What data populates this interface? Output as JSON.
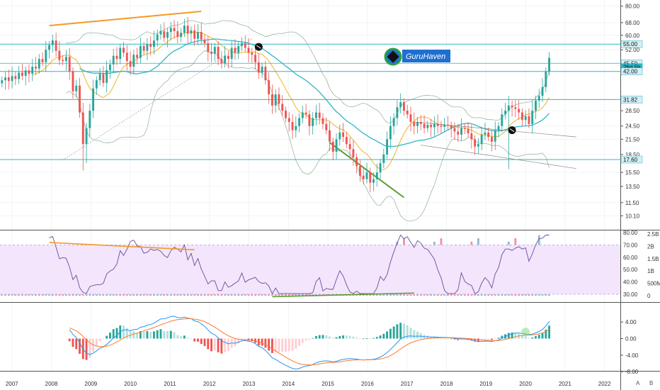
{
  "brand": {
    "logo_text": "GuruHaven",
    "accent": "#1e6fd0",
    "logo_ring": "#2ea043"
  },
  "colors": {
    "up": "#26a69a",
    "down": "#ef5350",
    "up_vol": "#8fbccf",
    "down_vol": "#f48fa6",
    "ma_fast": "#f0b429",
    "ma_slow": "#33b5c8",
    "bb": "#9db7a3",
    "hline": "#2bb7c8",
    "trend_orange": "#f59a23",
    "trend_green": "#5a9e2e",
    "macd": "#2196f3",
    "signal": "#ff7a30",
    "rsi": "#6b4c9a",
    "rsi_band": "#f3e5fb"
  },
  "chart_data": [
    {
      "type": "candlestick",
      "panel": "price",
      "scale": "log",
      "ylim": [
        8.8,
        85
      ],
      "xlim": [
        2006.7,
        2022.4
      ],
      "x_ticks": [
        "2007",
        "2008",
        "2009",
        "2010",
        "2011",
        "2012",
        "2013",
        "2014",
        "2015",
        "2016",
        "2017",
        "2018",
        "2019",
        "2020",
        "2021",
        "2022"
      ],
      "y_ticks": [
        80.0,
        68.0,
        60.0,
        52.0,
        45.5,
        42.0,
        31.82,
        28.5,
        24.5,
        21.5,
        18.5,
        15.5,
        13.5,
        11.5,
        10.1
      ],
      "price_tags": [
        "55.00",
        "45.50",
        "26d 5h",
        "42.00",
        "31.82",
        "17.60"
      ],
      "horizontal_levels": [
        55.0,
        42.0,
        31.82,
        17.6
      ],
      "closes": [
        38.5,
        39.6,
        38.2,
        40.1,
        39.0,
        41.5,
        40.2,
        42.4,
        41.0,
        44.0,
        43.2,
        47.5,
        46.0,
        52.0,
        54.5,
        57.0,
        51.5,
        47.0,
        46.5,
        48.5,
        42.0,
        34.5,
        36.5,
        28.0,
        20.5,
        24.0,
        28.5,
        35.5,
        38.5,
        41.0,
        37.5,
        42.5,
        45.0,
        49.0,
        47.5,
        53.0,
        50.5,
        46.5,
        44.0,
        49.5,
        48.0,
        54.0,
        51.5,
        55.0,
        53.5,
        57.0,
        60.5,
        62.5,
        58.5,
        62.0,
        64.5,
        62.5,
        59.0,
        61.5,
        66.0,
        61.0,
        63.0,
        58.0,
        62.0,
        57.5,
        55.5,
        51.0,
        50.0,
        53.5,
        47.5,
        45.5,
        49.0,
        47.5,
        53.0,
        50.5,
        54.0,
        55.5,
        53.0,
        50.5,
        49.5,
        46.0,
        41.5,
        44.0,
        38.5,
        33.5,
        30.0,
        33.5,
        30.5,
        28.5,
        26.5,
        25.5,
        23.5,
        24.5,
        26.5,
        28.0,
        27.5,
        24.5,
        26.5,
        28.0,
        26.5,
        25.0,
        23.5,
        21.0,
        19.0,
        21.5,
        23.0,
        22.0,
        20.5,
        19.5,
        18.0,
        16.5,
        15.0,
        14.5,
        15.5,
        14.0,
        14.5,
        15.5,
        17.0,
        18.5,
        21.5,
        24.5,
        26.5,
        29.5,
        31.0,
        28.5,
        27.5,
        25.5,
        24.5,
        25.5,
        25.0,
        24.0,
        24.8,
        24.2,
        25.0,
        24.5,
        24.3,
        24.8,
        24.6,
        24.0,
        23.2,
        22.5,
        24.0,
        23.8,
        22.8,
        21.5,
        20.0,
        20.5,
        22.5,
        23.0,
        22.0,
        21.0,
        23.5,
        24.5,
        27.5,
        28.5,
        30.0,
        29.5,
        29.0,
        28.0,
        26.0,
        27.0,
        25.0,
        28.5,
        31.5,
        33.0,
        36.0,
        42.0,
        48.0
      ]
    },
    {
      "type": "bar",
      "panel": "volume",
      "ylim": [
        0,
        2.5
      ],
      "y_ticks": [
        "2.5B",
        "2B",
        "1.5B",
        "1B",
        "500M",
        "0"
      ]
    },
    {
      "type": "line",
      "panel": "rsi",
      "ylim": [
        25,
        80
      ],
      "y_ticks": [
        "80.00",
        "70.00",
        "60.00",
        "50.00",
        "40.00",
        "30.00"
      ]
    },
    {
      "type": "bar",
      "panel": "macd",
      "ylim": [
        -9,
        6.5
      ],
      "y_ticks": [
        "4.00",
        "0.00",
        "-4.00",
        "-8.00"
      ]
    }
  ],
  "corner": {
    "auto": "A",
    "log": "B"
  }
}
